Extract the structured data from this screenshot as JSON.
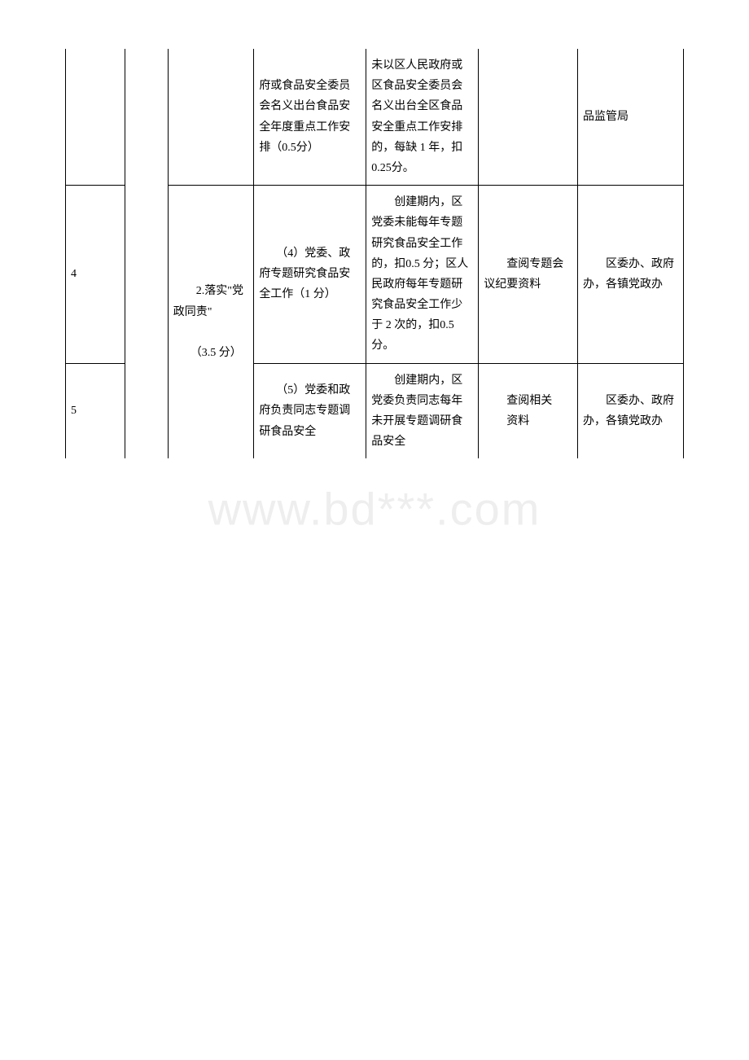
{
  "watermark": "www.bd***.com",
  "table": {
    "columns": {
      "seq_width": "9%",
      "cat_width": "6.5%",
      "item_width": "13%",
      "req_width": "17%",
      "deduct_width": "17%",
      "method_width": "15%",
      "dept_width": "16%"
    },
    "border_color": "#000000",
    "font_size": 14,
    "line_height": 1.8,
    "rows": [
      {
        "seq": "",
        "cat": "",
        "item": "",
        "req": "府或食品安全委员会名义出台食品安全年度重点工作安排（0.5分）",
        "deduct": "未以区人民政府或区食品安全委员会名义出台全区食品安全重点工作安排的，每缺 1 年，扣 0.25分。",
        "method": "",
        "dept": "品监管局",
        "top_open": true
      },
      {
        "seq": "4",
        "cat": "",
        "item_parts": [
          "　　2.落实\"党政同责\"",
          "　　（3.5 分）"
        ],
        "req": "　　（4）党委、政府专题研究食品安全工作（1 分）",
        "deduct": "　　创建期内，区党委未能每年专题研究食品安全工作的，扣0.5 分；区人民政府每年专题研究食品安全工作少于 2 次的，扣0.5 分。",
        "method": "　　查阅专题会议纪要资料",
        "dept": "　　区委办、政府办，各镇党政办",
        "item_rowspan": 2
      },
      {
        "seq": "5",
        "cat": "",
        "req": "　　（5）党委和政府负责同志专题调研食品安全",
        "deduct": "　　创建期内，区党委负责同志每年未开展专题调研食品安全",
        "method_parts": [
          "　　查阅相关",
          "　　资料"
        ],
        "dept": "　　区委办、政府办，各镇党政办",
        "bottom_open": true
      }
    ]
  }
}
